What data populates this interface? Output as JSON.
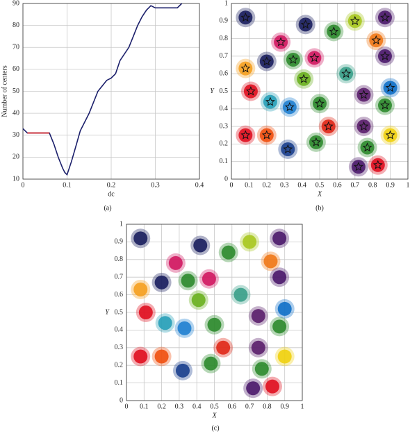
{
  "chart_data": [
    {
      "type": "line",
      "label": "(a)",
      "x_label": "dc",
      "y_label": "Number of centers",
      "xlim": [
        0,
        0.4
      ],
      "xticks": [
        0,
        0.1,
        0.2,
        0.3,
        0.4
      ],
      "ylim": [
        10,
        90
      ],
      "yticks": [
        10,
        20,
        30,
        40,
        50,
        60,
        70,
        80,
        90
      ],
      "grid": true,
      "series": [
        {
          "color": "#1b1f6b",
          "x": [
            0,
            0.005,
            0.01,
            0.06,
            0.07,
            0.08,
            0.09,
            0.095,
            0.1,
            0.11,
            0.12,
            0.13,
            0.15,
            0.17,
            0.19,
            0.2,
            0.21,
            0.22,
            0.24,
            0.25,
            0.26,
            0.27,
            0.28,
            0.29,
            0.3,
            0.32,
            0.35,
            0.36
          ],
          "values": [
            33,
            32,
            31,
            31,
            26,
            20,
            15,
            13,
            12,
            18,
            25,
            32,
            40,
            50,
            55,
            56,
            58,
            64,
            70,
            75,
            80,
            84,
            87,
            89,
            88,
            88,
            88,
            90
          ]
        },
        {
          "color": "#e02020",
          "x": [
            0.01,
            0.06
          ],
          "values": [
            31,
            31
          ]
        }
      ]
    },
    {
      "type": "scatter",
      "label": "(b)",
      "x_label": "X",
      "y_label": "Y",
      "stars": true,
      "xlim": [
        0,
        1
      ],
      "xticks": [
        0,
        0.1,
        0.2,
        0.3,
        0.4,
        0.5,
        0.6,
        0.7,
        0.8,
        0.9,
        1
      ],
      "ylim": [
        0,
        1
      ],
      "yticks": [
        0,
        0.1,
        0.2,
        0.3,
        0.4,
        0.5,
        0.6,
        0.7,
        0.8,
        0.9,
        1
      ],
      "grid": true,
      "x": [
        0.08,
        0.42,
        0.58,
        0.7,
        0.87,
        0.28,
        0.82,
        0.87,
        0.08,
        0.2,
        0.35,
        0.47,
        0.41,
        0.65,
        0.11,
        0.22,
        0.33,
        0.5,
        0.75,
        0.9,
        0.87,
        0.08,
        0.2,
        0.32,
        0.48,
        0.55,
        0.75,
        0.77,
        0.9,
        0.72,
        0.83
      ],
      "values": [
        0.92,
        0.88,
        0.84,
        0.9,
        0.92,
        0.78,
        0.79,
        0.7,
        0.63,
        0.67,
        0.68,
        0.69,
        0.57,
        0.6,
        0.5,
        0.44,
        0.41,
        0.43,
        0.48,
        0.52,
        0.42,
        0.25,
        0.25,
        0.17,
        0.21,
        0.3,
        0.3,
        0.18,
        0.25,
        0.07,
        0.08
      ],
      "colors": [
        "#1b1f5e",
        "#1b1f5e",
        "#2e8b2e",
        "#a8c820",
        "#4b1a6b",
        "#d01860",
        "#f07818",
        "#4b1a6b",
        "#f5a020",
        "#1b1f5e",
        "#2e8b2e",
        "#d01860",
        "#6ab020",
        "#3aa08a",
        "#e01020",
        "#28a0b8",
        "#2080d0",
        "#2e8b2e",
        "#5a1f6b",
        "#1070c8",
        "#2e8b2e",
        "#e01020",
        "#f05010",
        "#1b3f8e",
        "#2e8b2e",
        "#e02818",
        "#5a1f6b",
        "#2e8b2e",
        "#f0d010",
        "#4b1a6b",
        "#e01020"
      ]
    },
    {
      "type": "scatter",
      "label": "(c)",
      "x_label": "X",
      "y_label": "Y",
      "stars": false,
      "xlim": [
        0,
        1
      ],
      "xticks": [
        0,
        0.1,
        0.2,
        0.3,
        0.4,
        0.5,
        0.6,
        0.7,
        0.8,
        0.9,
        1
      ],
      "ylim": [
        0,
        1
      ],
      "yticks": [
        0,
        0.1,
        0.2,
        0.3,
        0.4,
        0.5,
        0.6,
        0.7,
        0.8,
        0.9,
        1
      ],
      "grid": true,
      "x": [
        0.08,
        0.42,
        0.58,
        0.7,
        0.87,
        0.28,
        0.82,
        0.87,
        0.08,
        0.2,
        0.35,
        0.47,
        0.41,
        0.65,
        0.11,
        0.22,
        0.33,
        0.5,
        0.75,
        0.9,
        0.87,
        0.08,
        0.2,
        0.32,
        0.48,
        0.55,
        0.75,
        0.77,
        0.9,
        0.72,
        0.83
      ],
      "values": [
        0.92,
        0.88,
        0.84,
        0.9,
        0.92,
        0.78,
        0.79,
        0.7,
        0.63,
        0.67,
        0.68,
        0.69,
        0.57,
        0.6,
        0.5,
        0.44,
        0.41,
        0.43,
        0.48,
        0.52,
        0.42,
        0.25,
        0.25,
        0.17,
        0.21,
        0.3,
        0.3,
        0.18,
        0.25,
        0.07,
        0.08
      ],
      "colors": [
        "#1b1f5e",
        "#1b1f5e",
        "#2e8b2e",
        "#a8c820",
        "#4b1a6b",
        "#d01860",
        "#f07818",
        "#4b1a6b",
        "#f5a020",
        "#1b1f5e",
        "#2e8b2e",
        "#d01860",
        "#6ab020",
        "#3aa08a",
        "#e01020",
        "#28a0b8",
        "#2080d0",
        "#2e8b2e",
        "#5a1f6b",
        "#1070c8",
        "#2e8b2e",
        "#e01020",
        "#f05010",
        "#1b3f8e",
        "#2e8b2e",
        "#e02818",
        "#5a1f6b",
        "#2e8b2e",
        "#f0d010",
        "#4b1a6b",
        "#e01020"
      ]
    }
  ]
}
